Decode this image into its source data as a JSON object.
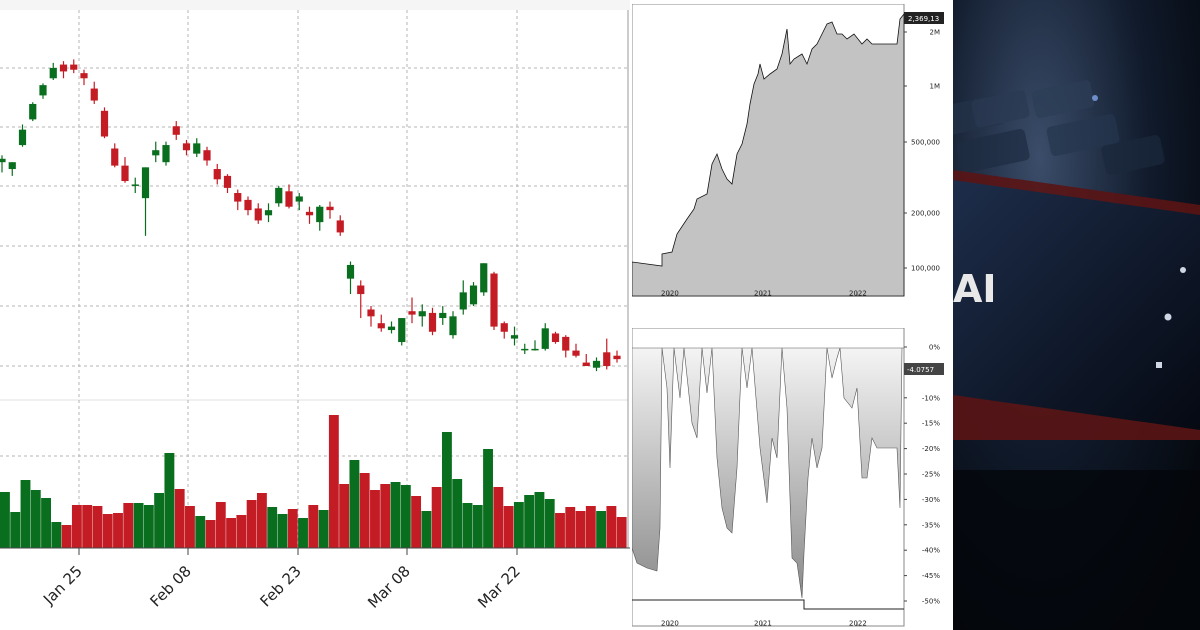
{
  "chart_data": [
    {
      "type": "candlestick",
      "x_tick_labels": [
        "Jan 25",
        "Feb 08",
        "Feb 23",
        "Mar 08",
        "Mar 22"
      ],
      "colors": {
        "up": "#0a6e1f",
        "down": "#c41c24",
        "grid": "#b5b5b5"
      },
      "candles": [
        {
          "o": 2.5,
          "h": 2.7,
          "l": 2.2,
          "c": 2.6
        },
        {
          "o": 2.3,
          "h": 2.5,
          "l": 2.1,
          "c": 2.5
        },
        {
          "o": 3.0,
          "h": 3.6,
          "l": 2.95,
          "c": 3.45
        },
        {
          "o": 3.75,
          "h": 4.25,
          "l": 3.7,
          "c": 4.2
        },
        {
          "o": 4.45,
          "h": 4.8,
          "l": 4.35,
          "c": 4.75
        },
        {
          "o": 4.95,
          "h": 5.4,
          "l": 4.9,
          "c": 5.25
        },
        {
          "o": 5.35,
          "h": 5.45,
          "l": 4.95,
          "c": 5.15
        },
        {
          "o": 5.35,
          "h": 5.5,
          "l": 5.1,
          "c": 5.2
        },
        {
          "o": 5.1,
          "h": 5.2,
          "l": 4.75,
          "c": 4.95
        },
        {
          "o": 4.65,
          "h": 4.85,
          "l": 4.2,
          "c": 4.3
        },
        {
          "o": 4.0,
          "h": 4.1,
          "l": 3.2,
          "c": 3.25
        },
        {
          "o": 2.9,
          "h": 3.05,
          "l": 2.35,
          "c": 2.4
        },
        {
          "o": 2.4,
          "h": 2.65,
          "l": 1.9,
          "c": 1.95
        },
        {
          "o": 1.85,
          "h": 2.05,
          "l": 1.6,
          "c": 1.85
        },
        {
          "o": 1.45,
          "h": 2.35,
          "l": 0.35,
          "c": 2.35
        },
        {
          "o": 2.7,
          "h": 3.1,
          "l": 2.5,
          "c": 2.85
        },
        {
          "o": 2.5,
          "h": 3.1,
          "l": 2.4,
          "c": 3.0
        },
        {
          "o": 3.55,
          "h": 3.7,
          "l": 3.15,
          "c": 3.3
        },
        {
          "o": 3.05,
          "h": 3.15,
          "l": 2.7,
          "c": 2.85
        },
        {
          "o": 2.75,
          "h": 3.2,
          "l": 2.65,
          "c": 3.05
        },
        {
          "o": 2.85,
          "h": 2.95,
          "l": 2.4,
          "c": 2.55
        },
        {
          "o": 2.3,
          "h": 2.45,
          "l": 1.85,
          "c": 2.0
        },
        {
          "o": 2.1,
          "h": 2.15,
          "l": 1.6,
          "c": 1.75
        },
        {
          "o": 1.6,
          "h": 1.7,
          "l": 1.1,
          "c": 1.35
        },
        {
          "o": 1.4,
          "h": 1.5,
          "l": 0.95,
          "c": 1.1
        },
        {
          "o": 1.15,
          "h": 1.3,
          "l": 0.7,
          "c": 0.8
        },
        {
          "o": 0.95,
          "h": 1.3,
          "l": 0.75,
          "c": 1.1
        },
        {
          "o": 1.3,
          "h": 1.8,
          "l": 1.2,
          "c": 1.75
        },
        {
          "o": 1.65,
          "h": 1.85,
          "l": 1.15,
          "c": 1.2
        },
        {
          "o": 1.35,
          "h": 1.6,
          "l": 1.1,
          "c": 1.5
        },
        {
          "o": 1.05,
          "h": 1.2,
          "l": 0.7,
          "c": 0.95
        },
        {
          "o": 0.75,
          "h": 1.25,
          "l": 0.5,
          "c": 1.2
        },
        {
          "o": 1.2,
          "h": 1.35,
          "l": 0.85,
          "c": 1.1
        },
        {
          "o": 0.8,
          "h": 0.95,
          "l": 0.35,
          "c": 0.45
        },
        {
          "o": -0.9,
          "h": -0.4,
          "l": -1.35,
          "c": -0.5
        },
        {
          "o": -1.1,
          "h": -0.95,
          "l": -2.05,
          "c": -1.35
        },
        {
          "o": -1.8,
          "h": -1.7,
          "l": -2.3,
          "c": -2.0
        },
        {
          "o": -2.2,
          "h": -1.95,
          "l": -2.45,
          "c": -2.35
        },
        {
          "o": -2.4,
          "h": -2.15,
          "l": -2.5,
          "c": -2.3
        },
        {
          "o": -2.75,
          "h": -2.05,
          "l": -2.85,
          "c": -2.05
        },
        {
          "o": -1.85,
          "h": -1.45,
          "l": -2.2,
          "c": -1.95
        },
        {
          "o": -2.0,
          "h": -1.65,
          "l": -2.3,
          "c": -1.85
        },
        {
          "o": -1.9,
          "h": -1.75,
          "l": -2.55,
          "c": -2.45
        },
        {
          "o": -2.05,
          "h": -1.7,
          "l": -2.25,
          "c": -1.9
        },
        {
          "o": -2.55,
          "h": -1.85,
          "l": -2.65,
          "c": -2.0
        },
        {
          "o": -1.8,
          "h": -0.95,
          "l": -1.95,
          "c": -1.3
        },
        {
          "o": -1.65,
          "h": -1.0,
          "l": -1.7,
          "c": -1.1
        },
        {
          "o": -1.3,
          "h": -0.45,
          "l": -1.4,
          "c": -0.45
        },
        {
          "o": -0.75,
          "h": -0.7,
          "l": -2.4,
          "c": -2.3
        },
        {
          "o": -2.2,
          "h": -2.15,
          "l": -2.65,
          "c": -2.45
        },
        {
          "o": -2.65,
          "h": -2.3,
          "l": -2.85,
          "c": -2.55
        },
        {
          "o": -2.95,
          "h": -2.8,
          "l": -3.1,
          "c": -2.95
        },
        {
          "o": -2.95,
          "h": -2.7,
          "l": -3.0,
          "c": -2.95
        },
        {
          "o": -2.95,
          "h": -2.2,
          "l": -3.0,
          "c": -2.35
        },
        {
          "o": -2.5,
          "h": -2.45,
          "l": -2.8,
          "c": -2.75
        },
        {
          "o": -2.6,
          "h": -2.55,
          "l": -3.2,
          "c": -3.0
        },
        {
          "o": -3.0,
          "h": -2.8,
          "l": -3.2,
          "c": -3.15
        },
        {
          "o": -3.35,
          "h": -3.1,
          "l": -3.45,
          "c": -3.45
        },
        {
          "o": -3.5,
          "h": -3.2,
          "l": -3.6,
          "c": -3.3
        },
        {
          "o": -3.05,
          "h": -2.65,
          "l": -3.55,
          "c": -3.45
        },
        {
          "o": -3.15,
          "h": -3.0,
          "l": -3.35,
          "c": -3.25
        }
      ],
      "volume_tops": [
        492,
        512,
        480,
        490,
        498,
        522,
        525,
        505,
        505,
        506,
        514,
        513,
        503,
        503,
        505,
        493,
        453,
        489,
        506,
        516,
        520,
        502,
        518,
        515,
        500,
        493,
        507,
        514,
        509,
        518,
        505,
        510,
        415,
        484,
        460,
        473,
        490,
        484,
        482,
        485,
        496,
        511,
        487,
        432,
        479,
        503,
        505,
        449,
        487,
        506,
        502,
        495,
        492,
        499,
        513,
        507,
        511,
        506,
        511,
        506,
        517
      ]
    },
    {
      "type": "area",
      "x_tick_labels": [
        "2020",
        "2021",
        "2022"
      ],
      "y_tick_labels": [
        "2M",
        "1M",
        "500,000",
        "200,000",
        "100,000"
      ],
      "scale": "log",
      "last_value_label": "2,369,13"
    },
    {
      "type": "area",
      "x_tick_labels": [
        "2020",
        "2021",
        "2022"
      ],
      "y_tick_labels": [
        "0%",
        "-5%",
        "-10%",
        "-15%",
        "-20%",
        "-25%",
        "-30%",
        "-35%",
        "-40%",
        "-45%",
        "-50%"
      ],
      "last_value_label": "-4.0757"
    }
  ],
  "photo": {
    "description_icon": "laptop-keyboard-phone-ai-photo",
    "ai_text": "AI"
  }
}
